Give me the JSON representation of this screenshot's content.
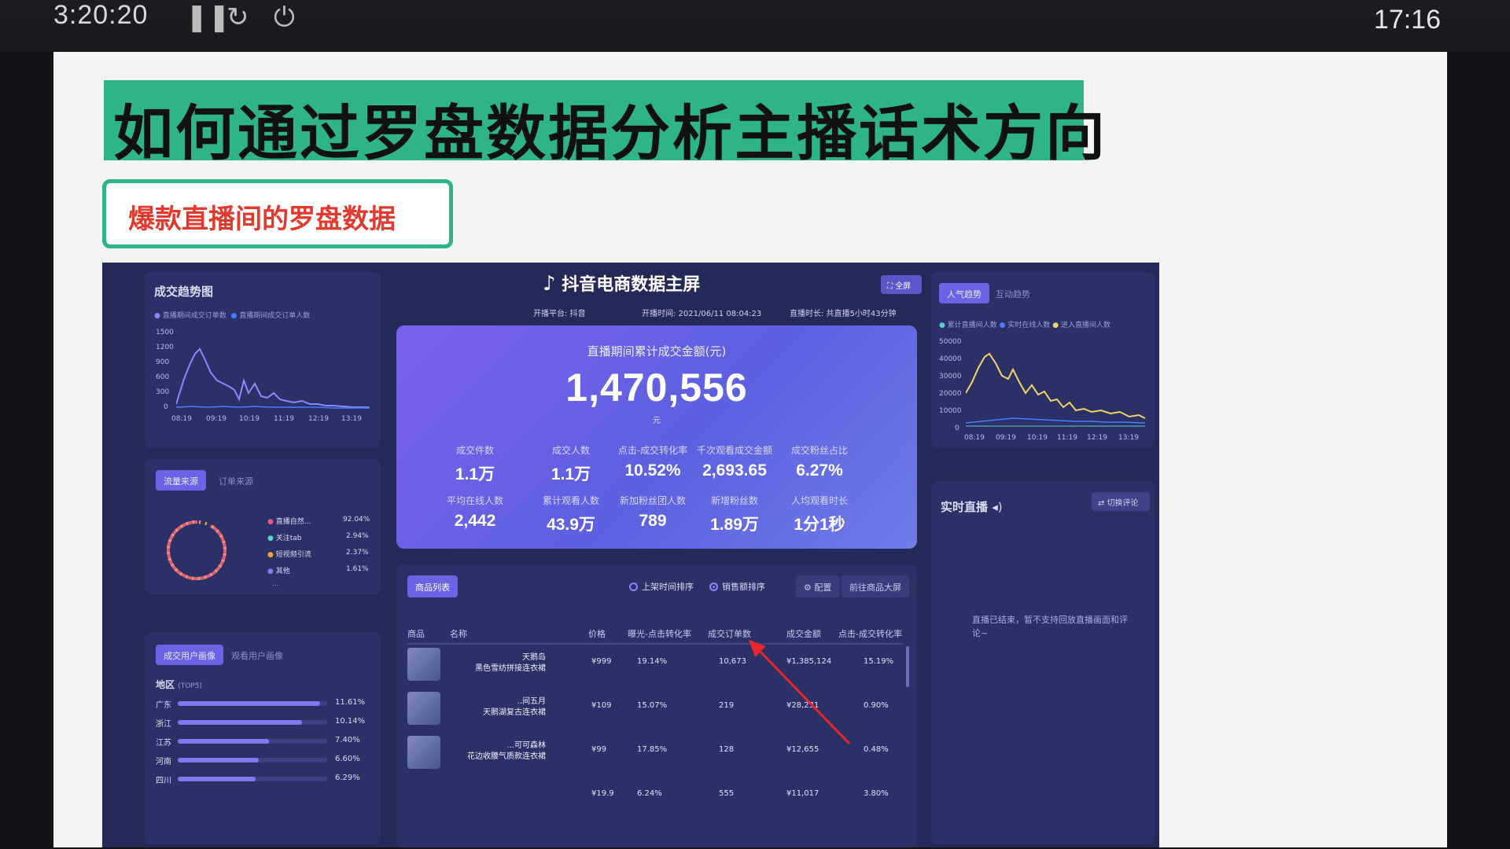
{
  "topbar": {
    "timer": "3:20:20",
    "clock": "17:16"
  },
  "slide": {
    "title": "如何通过罗盘数据分析主播话术方向",
    "subtitle": "爆款直播间的罗盘数据"
  },
  "dashboard": {
    "header": {
      "brand": "抖音电商数据主屏",
      "fullscreen": "全屏",
      "platform": "开播平台: 抖音",
      "start_time": "开播时间: 2021/06/11 08:04:23",
      "duration": "直播时长: 共直播5小时43分钟"
    },
    "hero": {
      "label": "直播期间累计成交金额(元)",
      "value": "1,470,556",
      "unit": "元",
      "metrics": [
        {
          "label": "成交件数",
          "value": "1.1万"
        },
        {
          "label": "成交人数",
          "value": "1.1万"
        },
        {
          "label": "点击-成交转化率",
          "value": "10.52%"
        },
        {
          "label": "千次观看成交金额",
          "value": "2,693.65"
        },
        {
          "label": "成交粉丝占比",
          "value": "6.27%"
        },
        {
          "label": "平均在线人数",
          "value": "2,442"
        },
        {
          "label": "累计观看人数",
          "value": "43.9万"
        },
        {
          "label": "新加粉丝团人数",
          "value": "789"
        },
        {
          "label": "新增粉丝数",
          "value": "1.89万"
        },
        {
          "label": "人均观看时长",
          "value": "1分1秒"
        }
      ]
    },
    "trend": {
      "title": "成交趋势图",
      "legend": [
        "直播期间成交订单数",
        "直播期间成交订单人数"
      ],
      "y_ticks": [
        "1500",
        "1200",
        "900",
        "600",
        "300",
        "0"
      ],
      "x_ticks": [
        "08:19",
        "09:19",
        "10:19",
        "11:19",
        "12:19",
        "13:19"
      ],
      "colors": {
        "series1": "#8f86ff",
        "series2": "#4a7cff"
      }
    },
    "source": {
      "tabs": [
        "流量来源",
        "订单来源"
      ],
      "items": [
        {
          "name": "直播自然...",
          "pct": "92.04%",
          "color": "#e05a8a"
        },
        {
          "name": "关注tab",
          "pct": "2.94%",
          "color": "#5ad1c6"
        },
        {
          "name": "短视频引流",
          "pct": "2.37%",
          "color": "#f2a33a"
        },
        {
          "name": "其他",
          "pct": "1.61%",
          "color": "#7d7bf2"
        }
      ],
      "more": "..."
    },
    "audience": {
      "tabs": [
        "成交用户画像",
        "观看用户画像"
      ],
      "region_title": "地区",
      "region_sub": "(TOP5)",
      "regions": [
        {
          "name": "广东",
          "pct": "11.61%",
          "fraction": 0.95
        },
        {
          "name": "浙江",
          "pct": "10.14%",
          "fraction": 0.83
        },
        {
          "name": "江苏",
          "pct": "7.40%",
          "fraction": 0.61
        },
        {
          "name": "河南",
          "pct": "6.60%",
          "fraction": 0.54
        },
        {
          "name": "四川",
          "pct": "6.29%",
          "fraction": 0.52
        }
      ]
    },
    "popularity": {
      "tabs": [
        "人气趋势",
        "互动趋势"
      ],
      "legend": [
        "累计直播间人数",
        "实时在线人数",
        "进入直播间人数"
      ],
      "y_ticks": [
        "50000",
        "40000",
        "30000",
        "20000",
        "10000",
        "0"
      ],
      "x_ticks": [
        "08:19",
        "09:19",
        "10:19",
        "11:19",
        "12:19",
        "13:19"
      ]
    },
    "products": {
      "tab": "商品列表",
      "sort_options": [
        "上架时间排序",
        "销售额排序"
      ],
      "config": "配置",
      "goto": "前往商品大屏",
      "columns": [
        "商品",
        "名称",
        "价格",
        "曝光-点击转化率",
        "成交订单数",
        "成交金额",
        "点击-成交转化率"
      ],
      "rows": [
        {
          "name1": "天鹅岛",
          "name2": "黑色雪纺拼接连衣裙",
          "price": "¥999",
          "ctr": "19.14%",
          "orders": "10,673",
          "amount": "¥1,385,124",
          "cvr": "15.19%"
        },
        {
          "name1": "..间五月",
          "name2": "天鹅湖复古连衣裙",
          "price": "¥109",
          "ctr": "15.07%",
          "orders": "219",
          "amount": "¥28,231",
          "cvr": "0.90%"
        },
        {
          "name1": "...可可森林",
          "name2": "花边收腰气质款连衣裙",
          "price": "¥99",
          "ctr": "17.85%",
          "orders": "128",
          "amount": "¥12,655",
          "cvr": "0.48%"
        },
        {
          "name1": "",
          "name2": "",
          "price": "¥19.9",
          "ctr": "6.24%",
          "orders": "555",
          "amount": "¥11,017",
          "cvr": "3.80%"
        }
      ]
    },
    "live": {
      "title": "实时直播",
      "switch": "切换评论",
      "message": "直播已结束，暂不支持回放直播画面和评论~"
    }
  }
}
